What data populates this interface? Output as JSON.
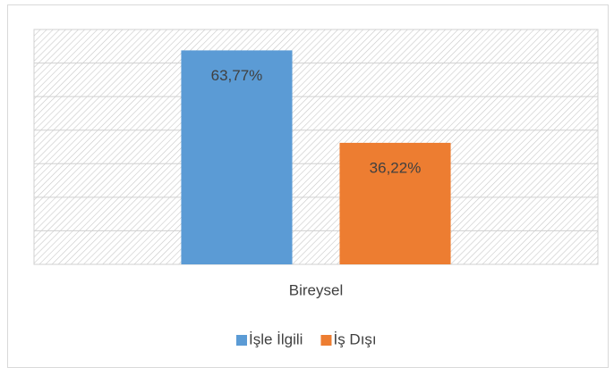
{
  "chart_data": {
    "type": "bar",
    "categories": [
      "Bireysel"
    ],
    "series": [
      {
        "name": "İşle İlgili",
        "color": "#5b9bd5",
        "values": [
          63.77
        ],
        "value_labels": [
          "63,77%"
        ]
      },
      {
        "name": "İş Dışı",
        "color": "#ed7d31",
        "values": [
          36.22
        ],
        "value_labels": [
          "36,22%"
        ]
      }
    ],
    "ylim": [
      0,
      70
    ],
    "yticks": [
      0,
      10,
      20,
      30,
      40,
      50,
      60,
      70
    ],
    "grid": true,
    "legend": "bottom"
  }
}
